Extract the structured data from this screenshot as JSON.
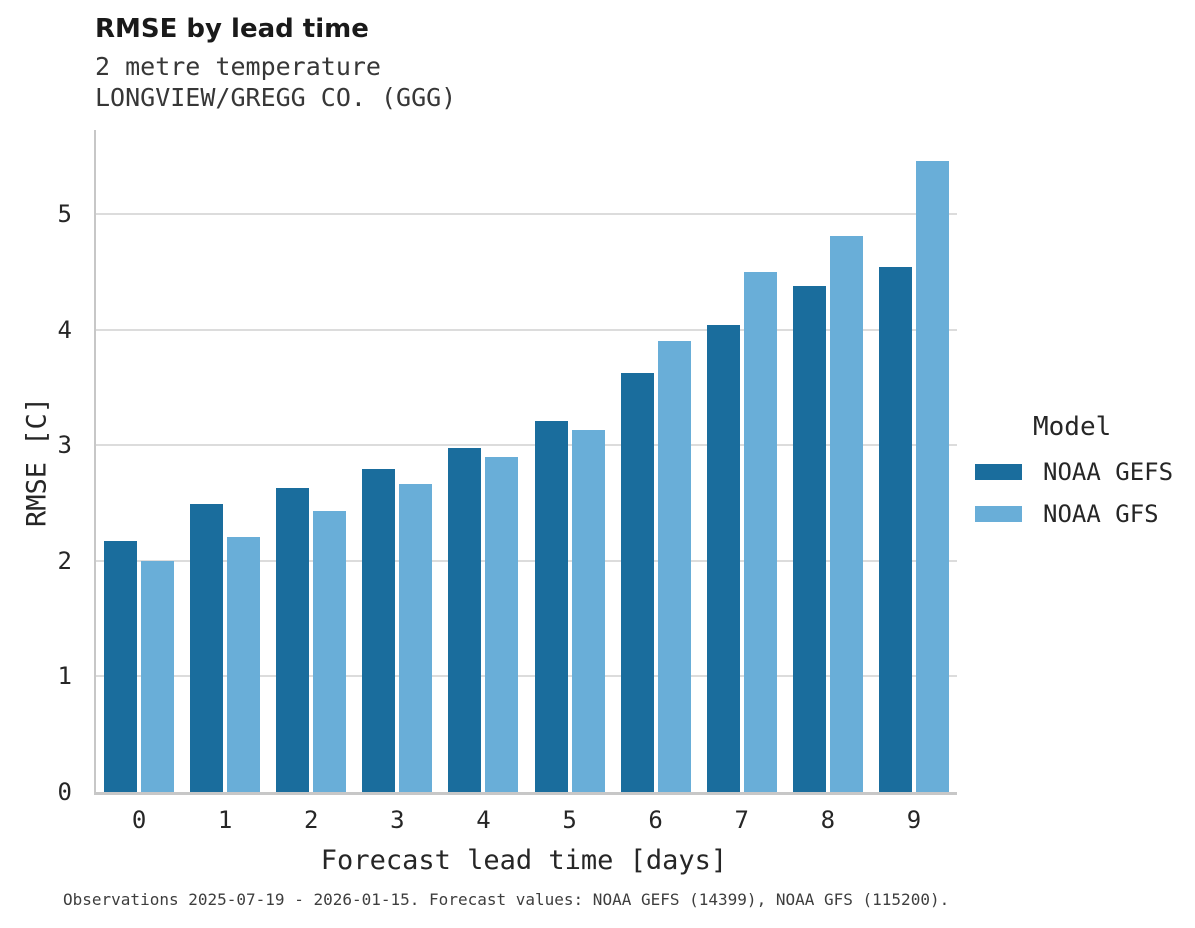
{
  "header": {
    "title": "RMSE by lead time",
    "subtitle_variable": "2 metre temperature",
    "subtitle_station": "LONGVIEW/GREGG CO. (GGG)"
  },
  "legend": {
    "title": "Model",
    "entries": [
      {
        "label": "NOAA GEFS",
        "color": "#1a6d9d"
      },
      {
        "label": "NOAA GFS",
        "color": "#69aed8"
      }
    ]
  },
  "footer": {
    "text": "Observations 2025-07-19 - 2026-01-15. Forecast values: NOAA GEFS (14399), NOAA GFS (115200)."
  },
  "colors": {
    "gefs_bar": "#1a6d9d",
    "gfs_bar": "#69aed8",
    "gridline": "#dcdcdc",
    "spine": "#c7c7c7"
  },
  "chart_data": {
    "type": "bar",
    "title": "RMSE by lead time",
    "subtitle": "2 metre temperature — LONGVIEW/GREGG CO. (GGG)",
    "xlabel": "Forecast lead time [days]",
    "ylabel": "RMSE [C]",
    "categories": [
      "0",
      "1",
      "2",
      "3",
      "4",
      "5",
      "6",
      "7",
      "8",
      "9"
    ],
    "series": [
      {
        "name": "NOAA GEFS",
        "color": "#1a6d9d",
        "values": [
          2.17,
          2.49,
          2.63,
          2.8,
          2.98,
          3.21,
          3.63,
          4.04,
          4.38,
          4.54
        ]
      },
      {
        "name": "NOAA GFS",
        "color": "#69aed8",
        "values": [
          2.0,
          2.21,
          2.43,
          2.67,
          2.9,
          3.13,
          3.9,
          4.5,
          4.81,
          5.46
        ]
      }
    ],
    "ylim": [
      0,
      5.73
    ],
    "yticks": [
      0,
      1,
      2,
      3,
      4,
      5
    ],
    "grid": "horizontal",
    "legend_position": "right"
  }
}
